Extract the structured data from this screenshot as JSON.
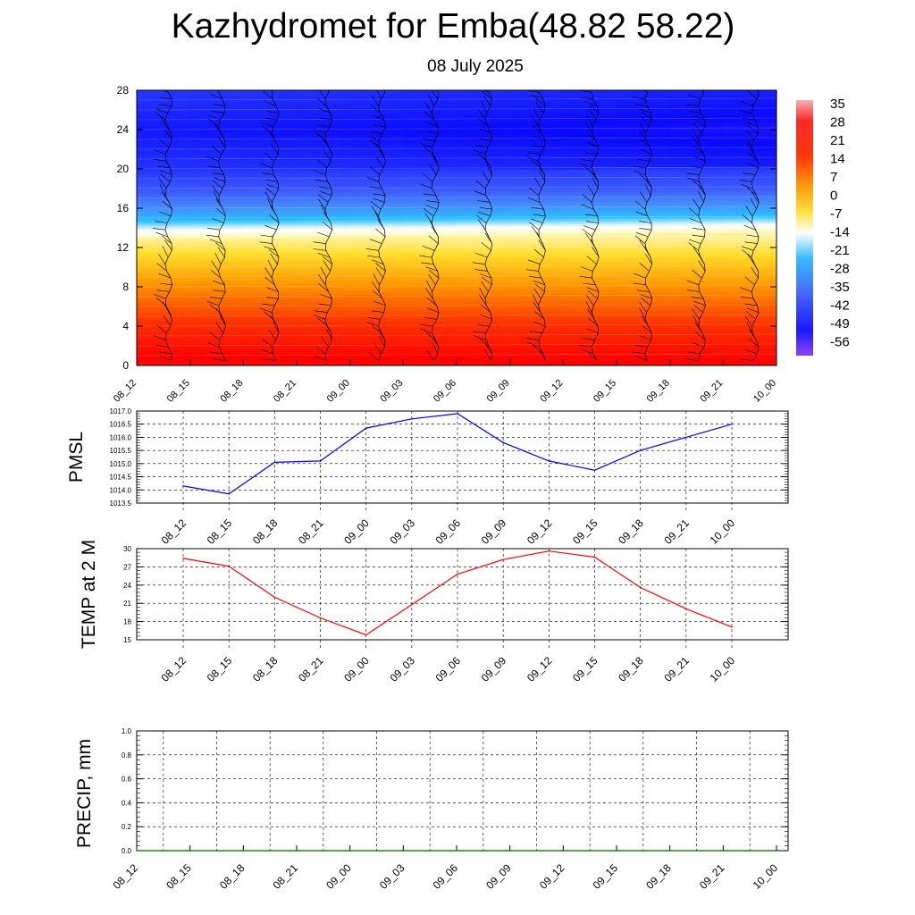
{
  "title": "Kazhydromet for Emba(48.82 58.22)",
  "subtitle": "08 July 2025",
  "colors": {
    "pmsl_line": "#0000ff",
    "temp_line": "#ff0000",
    "precip_line": "#006400",
    "colorbar_stops": [
      "#f4b0b0",
      "#ff0000",
      "#ff6a00",
      "#ffd200",
      "#ffffff",
      "#22aaff",
      "#3050ff",
      "#0000ff",
      "#8a3cff"
    ]
  },
  "chart_data": [
    {
      "type": "heatmap",
      "title": "",
      "ylim": [
        0,
        28
      ],
      "yticks": [
        "0",
        "4",
        "8",
        "12",
        "16",
        "20",
        "24",
        "28"
      ],
      "xticks": [
        "08_12",
        "08_15",
        "08_18",
        "08_21",
        "09_00",
        "09_03",
        "09_06",
        "09_09",
        "09_12",
        "09_15",
        "09_18",
        "09_21",
        "10_00"
      ],
      "colorbar": {
        "labels": [
          "35",
          "28",
          "21",
          "14",
          "7",
          "0",
          "-7",
          "-14",
          "-21",
          "-28",
          "-35",
          "-42",
          "-49",
          "-56"
        ],
        "range": [
          -60,
          40
        ]
      },
      "freezing_level": [
        12.8,
        12.8,
        12.9,
        12.9,
        13.0,
        13.0,
        13.1,
        13.1,
        13.2,
        13.2,
        13.3,
        13.4,
        13.4
      ],
      "wind_barbs": true
    },
    {
      "type": "line",
      "ylabel": "PMSL",
      "ylim": [
        1013.5,
        1017.0
      ],
      "yticks": [
        "1013.5",
        "1014.0",
        "1014.5",
        "1015.0",
        "1015.5",
        "1016.0",
        "1016.5",
        "1017.0"
      ],
      "x": [
        "08_12",
        "08_15",
        "08_18",
        "08_21",
        "09_00",
        "09_03",
        "09_06",
        "09_09",
        "09_12",
        "09_15",
        "09_18",
        "09_21",
        "10_00"
      ],
      "values": [
        1014.15,
        1013.85,
        1015.05,
        1015.1,
        1016.35,
        1016.7,
        1016.9,
        1015.8,
        1015.1,
        1014.75,
        1015.5,
        1016.0,
        1016.5
      ]
    },
    {
      "type": "line",
      "ylabel": "TEMP at 2 M",
      "ylim": [
        15,
        30
      ],
      "yticks": [
        "15",
        "18",
        "21",
        "24",
        "27",
        "30"
      ],
      "x": [
        "08_12",
        "08_15",
        "08_18",
        "08_21",
        "09_00",
        "09_03",
        "09_06",
        "09_09",
        "09_12",
        "09_15",
        "09_18",
        "09_21",
        "10_00"
      ],
      "values": [
        28.4,
        27.1,
        22.0,
        18.6,
        15.8,
        20.8,
        25.8,
        28.2,
        29.6,
        28.6,
        23.6,
        20.1,
        17.1
      ]
    },
    {
      "type": "line",
      "ylabel": "PRECIP, mm",
      "ylim": [
        0.0,
        1.0
      ],
      "yticks": [
        "0.0",
        "0.2",
        "0.4",
        "0.6",
        "0.8",
        "1.0"
      ],
      "x": [
        "08_12",
        "08_15",
        "08_18",
        "08_21",
        "09_00",
        "09_03",
        "09_06",
        "09_09",
        "09_12",
        "09_15",
        "09_18",
        "09_21",
        "10_00"
      ],
      "values": [
        0,
        0,
        0,
        0,
        0,
        0,
        0,
        0,
        0,
        0,
        0,
        0,
        0
      ]
    }
  ]
}
